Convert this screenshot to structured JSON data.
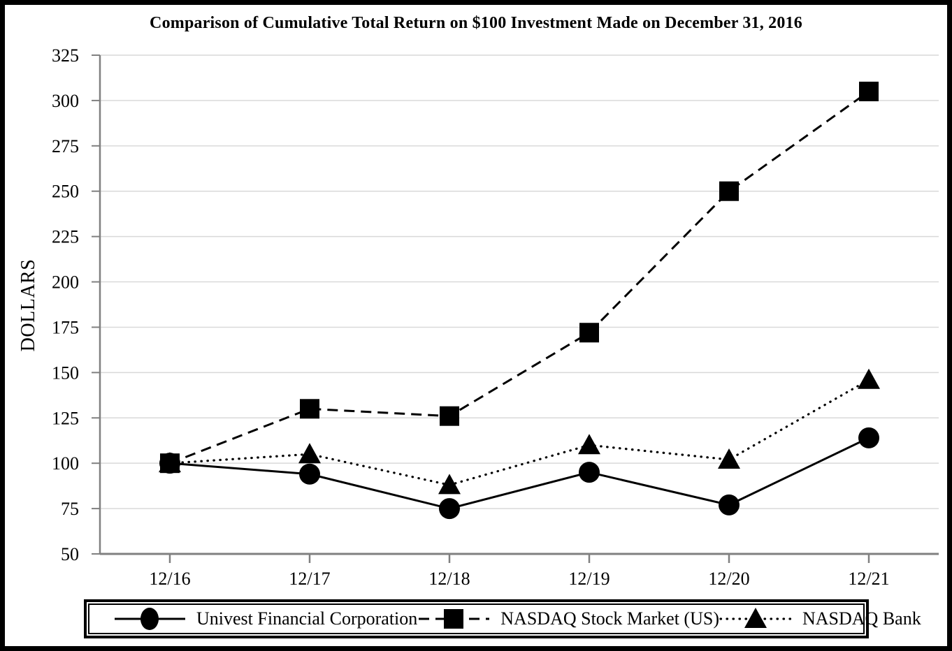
{
  "chart_data": {
    "type": "line",
    "title": "Comparison of Cumulative Total Return on $100 Investment Made on December 31, 2016",
    "xlabel": "",
    "ylabel": "DOLLARS",
    "categories": [
      "12/16",
      "12/17",
      "12/18",
      "12/19",
      "12/20",
      "12/21"
    ],
    "series": [
      {
        "name": "Univest Financial Corporation",
        "values": [
          100,
          94,
          75,
          95,
          77,
          114
        ],
        "line_style": "solid",
        "marker": "circle",
        "color": "#000000"
      },
      {
        "name": "NASDAQ Stock Market (US)",
        "values": [
          100,
          130,
          126,
          172,
          250,
          305
        ],
        "line_style": "dashed",
        "marker": "square",
        "color": "#000000"
      },
      {
        "name": "NASDAQ Bank",
        "values": [
          100,
          105,
          88,
          110,
          102,
          146
        ],
        "line_style": "dotted",
        "marker": "triangle",
        "color": "#000000"
      }
    ],
    "ylim": [
      50,
      325
    ],
    "yticks": [
      50,
      75,
      100,
      125,
      150,
      175,
      200,
      225,
      250,
      275,
      300,
      325
    ],
    "grid": "horizontal-only",
    "legend_position": "bottom-boxed",
    "axis_color": "#808080",
    "grid_color": "#d9d9d9",
    "text_color": "#000000"
  }
}
